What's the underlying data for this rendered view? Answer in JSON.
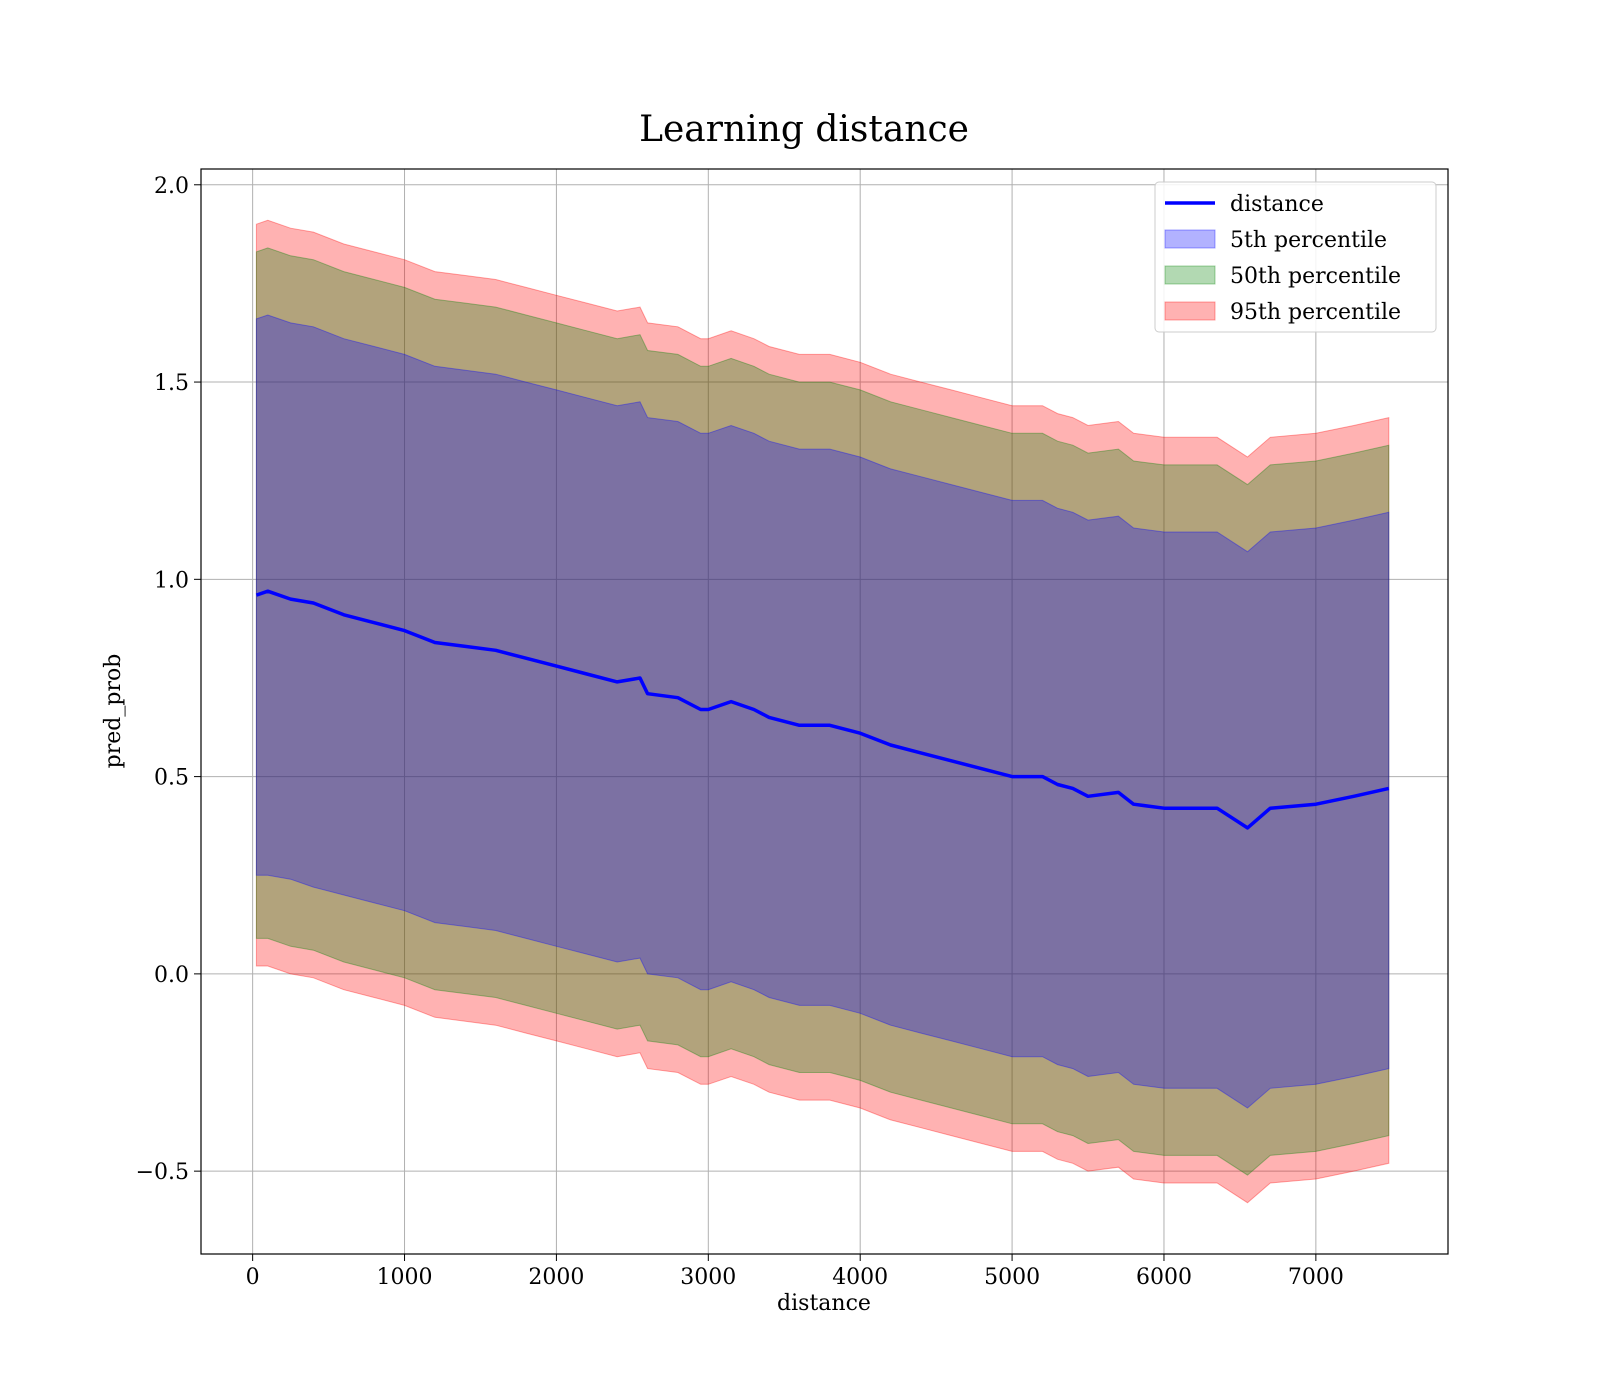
{
  "chart_data": {
    "type": "area",
    "title": "Learning distance",
    "xlabel": "distance",
    "ylabel": "pred_prob",
    "xlim": [
      -340,
      7870
    ],
    "ylim": [
      -0.71,
      2.04
    ],
    "xticks": [
      0,
      1000,
      2000,
      3000,
      4000,
      5000,
      6000,
      7000
    ],
    "xtick_labels": [
      "0",
      "1000",
      "2000",
      "3000",
      "4000",
      "5000",
      "6000",
      "7000"
    ],
    "yticks": [
      -0.5,
      0.0,
      0.5,
      1.0,
      1.5,
      2.0
    ],
    "ytick_labels": [
      "−0.5",
      "0.0",
      "0.5",
      "1.0",
      "1.5",
      "2.0"
    ],
    "grid": true,
    "legend_position": "top-right",
    "x": [
      25,
      100,
      250,
      400,
      600,
      800,
      1000,
      1200,
      1400,
      1600,
      1800,
      2000,
      2200,
      2400,
      2550,
      2600,
      2800,
      2950,
      3000,
      3150,
      3300,
      3400,
      3600,
      3800,
      4000,
      4200,
      4400,
      4600,
      4800,
      5000,
      5200,
      5300,
      5400,
      5500,
      5700,
      5800,
      6000,
      6200,
      6350,
      6550,
      6700,
      7000,
      7250,
      7480
    ],
    "series": [
      {
        "name": "distance",
        "kind": "line",
        "color": "#0000ff",
        "values": [
          0.96,
          0.97,
          0.95,
          0.94,
          0.91,
          0.89,
          0.87,
          0.84,
          0.83,
          0.82,
          0.8,
          0.78,
          0.76,
          0.74,
          0.75,
          0.71,
          0.7,
          0.67,
          0.67,
          0.69,
          0.67,
          0.65,
          0.63,
          0.63,
          0.61,
          0.58,
          0.56,
          0.54,
          0.52,
          0.5,
          0.5,
          0.48,
          0.47,
          0.45,
          0.46,
          0.43,
          0.42,
          0.42,
          0.42,
          0.37,
          0.42,
          0.43,
          0.45,
          0.47
        ]
      },
      {
        "name": "5th percentile",
        "kind": "band",
        "color": "#0000ff",
        "lower": [
          0.25,
          0.25,
          0.24,
          0.22,
          0.2,
          0.18,
          0.16,
          0.13,
          0.12,
          0.11,
          0.09,
          0.07,
          0.05,
          0.03,
          0.04,
          0.0,
          -0.01,
          -0.04,
          -0.04,
          -0.02,
          -0.04,
          -0.06,
          -0.08,
          -0.08,
          -0.1,
          -0.13,
          -0.15,
          -0.17,
          -0.19,
          -0.21,
          -0.21,
          -0.23,
          -0.24,
          -0.26,
          -0.25,
          -0.28,
          -0.29,
          -0.29,
          -0.29,
          -0.34,
          -0.29,
          -0.28,
          -0.26,
          -0.24
        ],
        "upper": [
          1.66,
          1.67,
          1.65,
          1.64,
          1.61,
          1.59,
          1.57,
          1.54,
          1.53,
          1.52,
          1.5,
          1.48,
          1.46,
          1.44,
          1.45,
          1.41,
          1.4,
          1.37,
          1.37,
          1.39,
          1.37,
          1.35,
          1.33,
          1.33,
          1.31,
          1.28,
          1.26,
          1.24,
          1.22,
          1.2,
          1.2,
          1.18,
          1.17,
          1.15,
          1.16,
          1.13,
          1.12,
          1.12,
          1.12,
          1.07,
          1.12,
          1.13,
          1.15,
          1.17
        ]
      },
      {
        "name": "50th percentile",
        "kind": "band",
        "color": "#008000",
        "lower": [
          0.09,
          0.09,
          0.07,
          0.06,
          0.03,
          0.01,
          -0.01,
          -0.04,
          -0.05,
          -0.06,
          -0.08,
          -0.1,
          -0.12,
          -0.14,
          -0.13,
          -0.17,
          -0.18,
          -0.21,
          -0.21,
          -0.19,
          -0.21,
          -0.23,
          -0.25,
          -0.25,
          -0.27,
          -0.3,
          -0.32,
          -0.34,
          -0.36,
          -0.38,
          -0.38,
          -0.4,
          -0.41,
          -0.43,
          -0.42,
          -0.45,
          -0.46,
          -0.46,
          -0.46,
          -0.51,
          -0.46,
          -0.45,
          -0.43,
          -0.41
        ],
        "upper": [
          1.83,
          1.84,
          1.82,
          1.81,
          1.78,
          1.76,
          1.74,
          1.71,
          1.7,
          1.69,
          1.67,
          1.65,
          1.63,
          1.61,
          1.62,
          1.58,
          1.57,
          1.54,
          1.54,
          1.56,
          1.54,
          1.52,
          1.5,
          1.5,
          1.48,
          1.45,
          1.43,
          1.41,
          1.39,
          1.37,
          1.37,
          1.35,
          1.34,
          1.32,
          1.33,
          1.3,
          1.29,
          1.29,
          1.29,
          1.24,
          1.29,
          1.3,
          1.32,
          1.34
        ]
      },
      {
        "name": "95th percentile",
        "kind": "band",
        "color": "#ff0000",
        "lower": [
          0.02,
          0.02,
          0.0,
          -0.01,
          -0.04,
          -0.06,
          -0.08,
          -0.11,
          -0.12,
          -0.13,
          -0.15,
          -0.17,
          -0.19,
          -0.21,
          -0.2,
          -0.24,
          -0.25,
          -0.28,
          -0.28,
          -0.26,
          -0.28,
          -0.3,
          -0.32,
          -0.32,
          -0.34,
          -0.37,
          -0.39,
          -0.41,
          -0.43,
          -0.45,
          -0.45,
          -0.47,
          -0.48,
          -0.5,
          -0.49,
          -0.52,
          -0.53,
          -0.53,
          -0.53,
          -0.58,
          -0.53,
          -0.52,
          -0.5,
          -0.48
        ],
        "upper": [
          1.9,
          1.91,
          1.89,
          1.88,
          1.85,
          1.83,
          1.81,
          1.78,
          1.77,
          1.76,
          1.74,
          1.72,
          1.7,
          1.68,
          1.69,
          1.65,
          1.64,
          1.61,
          1.61,
          1.63,
          1.61,
          1.59,
          1.57,
          1.57,
          1.55,
          1.52,
          1.5,
          1.48,
          1.46,
          1.44,
          1.44,
          1.42,
          1.41,
          1.39,
          1.4,
          1.37,
          1.36,
          1.36,
          1.36,
          1.31,
          1.36,
          1.37,
          1.39,
          1.41
        ]
      }
    ]
  }
}
